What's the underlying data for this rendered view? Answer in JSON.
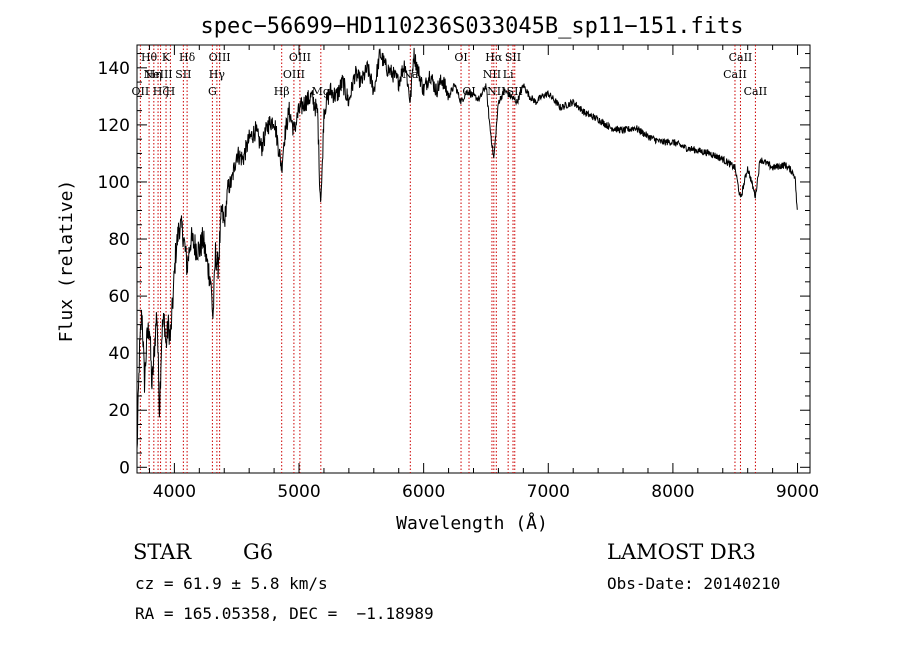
{
  "chart_data": {
    "type": "line",
    "title": "spec−56699−HD110236S033045B_sp11−151.fits",
    "xlabel": "Wavelength (Å)",
    "ylabel": "Flux (relative)",
    "xlim": [
      3700,
      9100
    ],
    "ylim": [
      -2,
      148
    ],
    "xticks": [
      4000,
      5000,
      6000,
      7000,
      8000,
      9000
    ],
    "xtick_labels": [
      "4000",
      "5000",
      "6000",
      "7000",
      "8000",
      "9000"
    ],
    "yticks": [
      0,
      20,
      40,
      60,
      80,
      100,
      120,
      140
    ],
    "ytick_labels": [
      "0",
      "20",
      "40",
      "60",
      "80",
      "100",
      "120",
      "140"
    ],
    "x": [
      3700,
      3720,
      3740,
      3760,
      3780,
      3800,
      3820,
      3840,
      3860,
      3880,
      3900,
      3920,
      3933,
      3950,
      3968,
      3990,
      4010,
      4040,
      4070,
      4102,
      4130,
      4160,
      4200,
      4230,
      4260,
      4290,
      4310,
      4330,
      4350,
      4380,
      4400,
      4430,
      4460,
      4500,
      4550,
      4600,
      4650,
      4700,
      4750,
      4800,
      4861,
      4880,
      4920,
      4960,
      5000,
      5050,
      5100,
      5150,
      5167,
      5175,
      5183,
      5200,
      5250,
      5300,
      5350,
      5400,
      5450,
      5500,
      5550,
      5600,
      5650,
      5700,
      5750,
      5800,
      5850,
      5893,
      5920,
      5950,
      6000,
      6050,
      6100,
      6150,
      6200,
      6250,
      6300,
      6350,
      6400,
      6450,
      6500,
      6530,
      6563,
      6600,
      6650,
      6700,
      6750,
      6800,
      6850,
      6900,
      6950,
      7000,
      7100,
      7200,
      7300,
      7400,
      7500,
      7600,
      7700,
      7800,
      7900,
      8000,
      8100,
      8200,
      8300,
      8400,
      8498,
      8542,
      8600,
      8662,
      8700,
      8800,
      8900,
      8950,
      8980,
      9000
    ],
    "y": [
      5,
      40,
      55,
      30,
      45,
      50,
      28,
      42,
      55,
      20,
      48,
      52,
      42,
      50,
      45,
      60,
      75,
      85,
      82,
      70,
      80,
      78,
      76,
      80,
      72,
      66,
      52,
      75,
      70,
      90,
      85,
      98,
      100,
      110,
      108,
      115,
      118,
      112,
      120,
      122,
      105,
      115,
      125,
      118,
      125,
      128,
      130,
      124,
      98,
      95,
      100,
      125,
      132,
      130,
      135,
      128,
      138,
      135,
      140,
      132,
      145,
      140,
      138,
      135,
      142,
      128,
      145,
      140,
      132,
      138,
      132,
      136,
      130,
      134,
      128,
      132,
      130,
      129,
      134,
      120,
      108,
      128,
      132,
      130,
      128,
      134,
      130,
      128,
      130,
      131,
      126,
      128,
      124,
      122,
      119,
      118,
      119,
      116,
      114,
      114,
      112,
      111,
      110,
      108,
      105,
      94,
      105,
      95,
      108,
      105,
      106,
      104,
      102,
      88
    ],
    "series": [
      {
        "name": "spectrum",
        "color": "#000000"
      },
      {
        "name": "line markers",
        "color": "#cc0000"
      }
    ],
    "line_markers": [
      {
        "wavelength": 3727,
        "label": "OII",
        "row": 3
      },
      {
        "wavelength": 3797,
        "label": "Hθ",
        "row": 1
      },
      {
        "wavelength": 3835,
        "label": "Hη",
        "row": 2
      },
      {
        "wavelength": 3869,
        "label": "NeIII",
        "row": 2
      },
      {
        "wavelength": 3889,
        "label": "Hζ",
        "row": 3
      },
      {
        "wavelength": 3933,
        "label": "K",
        "row": 1
      },
      {
        "wavelength": 3968,
        "label": "H",
        "row": 3
      },
      {
        "wavelength": 4072,
        "label": "SII",
        "row": 2
      },
      {
        "wavelength": 4102,
        "label": "Hδ",
        "row": 1
      },
      {
        "wavelength": 4305,
        "label": "G",
        "row": 3
      },
      {
        "wavelength": 4341,
        "label": "Hγ",
        "row": 2
      },
      {
        "wavelength": 4363,
        "label": "OIII",
        "row": 1
      },
      {
        "wavelength": 4861,
        "label": "Hβ",
        "row": 3
      },
      {
        "wavelength": 4959,
        "label": "OIII",
        "row": 2
      },
      {
        "wavelength": 5007,
        "label": "OIII",
        "row": 1
      },
      {
        "wavelength": 5175,
        "label": "Mg",
        "row": 3
      },
      {
        "wavelength": 5893,
        "label": "Na",
        "row": 2
      },
      {
        "wavelength": 6300,
        "label": "OI",
        "row": 1
      },
      {
        "wavelength": 6364,
        "label": "OI",
        "row": 3
      },
      {
        "wavelength": 6548,
        "label": "NII",
        "row": 2
      },
      {
        "wavelength": 6563,
        "label": "Hα",
        "row": 1
      },
      {
        "wavelength": 6583,
        "label": "NII",
        "row": 3
      },
      {
        "wavelength": 6678,
        "label": "Li",
        "row": 2
      },
      {
        "wavelength": 6717,
        "label": "SII",
        "row": 1
      },
      {
        "wavelength": 6731,
        "label": "SII",
        "row": 3
      },
      {
        "wavelength": 8498,
        "label": "CaII",
        "row": 2
      },
      {
        "wavelength": 8542,
        "label": "CaII",
        "row": 1
      },
      {
        "wavelength": 8662,
        "label": "CaII",
        "row": 3
      }
    ]
  },
  "info": {
    "classification": "STAR",
    "subclass": "G6",
    "survey": "LAMOST DR3",
    "cz": "cz = 61.9 ± 5.8 km/s",
    "obs_date": "Obs-Date: 20140210",
    "coords": "RA = 165.05358, DEC =  −1.18989"
  }
}
